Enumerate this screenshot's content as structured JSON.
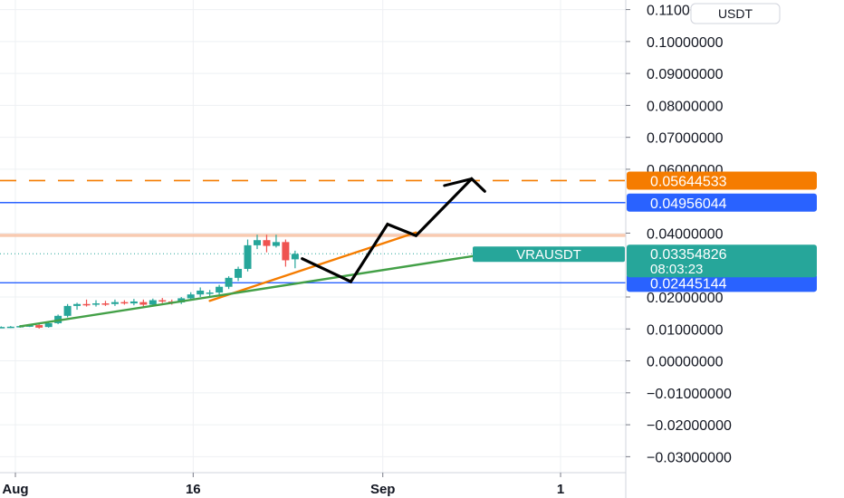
{
  "chart_data": {
    "type": "candlestick",
    "symbol": "VRAUSDT",
    "currency": "USDT",
    "price_axis": {
      "ticks": [
        "0.11000000",
        "0.10000000",
        "0.09000000",
        "0.08000000",
        "0.07000000",
        "0.06000000",
        "0.04000000",
        "0.02000000",
        "0.01000000",
        "0.00000000",
        "−0.01000000",
        "−0.02000000",
        "−0.03000000"
      ],
      "tick_values": [
        0.11,
        0.1,
        0.09,
        0.08,
        0.07,
        0.06,
        0.04,
        0.02,
        0.01,
        0.0,
        -0.01,
        -0.02,
        -0.03
      ],
      "ylim": [
        -0.035,
        0.113
      ]
    },
    "time_axis": {
      "ticks": [
        "Aug",
        "16",
        "Sep",
        "1"
      ],
      "tick_days": [
        1,
        16,
        32,
        47
      ],
      "xlim": [
        -0.3,
        52.5
      ]
    },
    "candles": [
      {
        "day": -0.2,
        "o": 0.0105,
        "h": 0.0108,
        "l": 0.0103,
        "c": 0.0106
      },
      {
        "day": 0.6,
        "o": 0.0106,
        "h": 0.0109,
        "l": 0.0103,
        "c": 0.0107
      },
      {
        "day": 1.4,
        "o": 0.0107,
        "h": 0.0112,
        "l": 0.0104,
        "c": 0.0109
      },
      {
        "day": 2.2,
        "o": 0.0109,
        "h": 0.0115,
        "l": 0.0106,
        "c": 0.0111
      },
      {
        "day": 3.0,
        "o": 0.0112,
        "h": 0.0115,
        "l": 0.0101,
        "c": 0.0104
      },
      {
        "day": 3.8,
        "o": 0.0106,
        "h": 0.0122,
        "l": 0.0104,
        "c": 0.0118
      },
      {
        "day": 4.6,
        "o": 0.0118,
        "h": 0.0145,
        "l": 0.0115,
        "c": 0.0141
      },
      {
        "day": 5.4,
        "o": 0.0141,
        "h": 0.0178,
        "l": 0.0136,
        "c": 0.0172
      },
      {
        "day": 6.2,
        "o": 0.0172,
        "h": 0.0182,
        "l": 0.016,
        "c": 0.0178
      },
      {
        "day": 7.0,
        "o": 0.0178,
        "h": 0.0192,
        "l": 0.017,
        "c": 0.0176
      },
      {
        "day": 7.8,
        "o": 0.0176,
        "h": 0.019,
        "l": 0.017,
        "c": 0.018
      },
      {
        "day": 8.6,
        "o": 0.018,
        "h": 0.0188,
        "l": 0.0172,
        "c": 0.0178
      },
      {
        "day": 9.4,
        "o": 0.0178,
        "h": 0.0192,
        "l": 0.0172,
        "c": 0.0184
      },
      {
        "day": 10.2,
        "o": 0.0184,
        "h": 0.019,
        "l": 0.0176,
        "c": 0.018
      },
      {
        "day": 11.0,
        "o": 0.018,
        "h": 0.0194,
        "l": 0.0174,
        "c": 0.0186
      },
      {
        "day": 11.8,
        "o": 0.0184,
        "h": 0.0192,
        "l": 0.017,
        "c": 0.0176
      },
      {
        "day": 12.6,
        "o": 0.0176,
        "h": 0.0195,
        "l": 0.0172,
        "c": 0.019
      },
      {
        "day": 13.4,
        "o": 0.019,
        "h": 0.0197,
        "l": 0.0181,
        "c": 0.0186
      },
      {
        "day": 14.2,
        "o": 0.0186,
        "h": 0.0192,
        "l": 0.0176,
        "c": 0.0182
      },
      {
        "day": 15.0,
        "o": 0.0183,
        "h": 0.02,
        "l": 0.0178,
        "c": 0.0196
      },
      {
        "day": 15.8,
        "o": 0.0196,
        "h": 0.0215,
        "l": 0.019,
        "c": 0.0208
      },
      {
        "day": 16.6,
        "o": 0.0208,
        "h": 0.023,
        "l": 0.02,
        "c": 0.022
      },
      {
        "day": 17.4,
        "o": 0.021,
        "h": 0.0222,
        "l": 0.02,
        "c": 0.0214
      },
      {
        "day": 18.2,
        "o": 0.0214,
        "h": 0.0238,
        "l": 0.0208,
        "c": 0.0232
      },
      {
        "day": 19.0,
        "o": 0.0232,
        "h": 0.0265,
        "l": 0.0225,
        "c": 0.026
      },
      {
        "day": 19.8,
        "o": 0.026,
        "h": 0.0295,
        "l": 0.025,
        "c": 0.0288
      },
      {
        "day": 20.6,
        "o": 0.0288,
        "h": 0.038,
        "l": 0.028,
        "c": 0.0362
      },
      {
        "day": 21.4,
        "o": 0.0362,
        "h": 0.0395,
        "l": 0.035,
        "c": 0.0378
      },
      {
        "day": 22.2,
        "o": 0.0378,
        "h": 0.0395,
        "l": 0.034,
        "c": 0.036
      },
      {
        "day": 23.0,
        "o": 0.036,
        "h": 0.0395,
        "l": 0.0355,
        "c": 0.0372
      },
      {
        "day": 23.8,
        "o": 0.0372,
        "h": 0.038,
        "l": 0.0295,
        "c": 0.0315
      },
      {
        "day": 24.6,
        "o": 0.0318,
        "h": 0.0345,
        "l": 0.029,
        "c": 0.0335
      }
    ],
    "last_price": {
      "value": 0.03354826,
      "label": "0.03354826",
      "countdown": "08:03:23",
      "symbol_label": "VRAUSDT"
    },
    "levels": [
      {
        "name": "target-dashed",
        "value": 0.05644533,
        "label": "0.05644533",
        "color": "#f57c00",
        "style": "dashed"
      },
      {
        "name": "resistance",
        "value": 0.04956044,
        "label": "0.04956044",
        "color": "#2962ff",
        "style": "solid"
      },
      {
        "name": "support",
        "value": 0.02445144,
        "label": "0.02445144",
        "color": "#2962ff",
        "style": "solid"
      }
    ],
    "zone": {
      "from": 0.0388,
      "to": 0.0398,
      "color": "#f7c1a3"
    },
    "trendlines": [
      {
        "name": "orange-trendline",
        "color": "#f57c00",
        "points": [
          [
            17.4,
            0.0188
          ],
          [
            34.8,
            0.0402
          ]
        ]
      },
      {
        "name": "green-trendline",
        "color": "#43a047",
        "points": [
          [
            1.4,
            0.0108
          ],
          [
            40.8,
            0.0335
          ]
        ]
      }
    ],
    "projection": {
      "name": "projected-path",
      "color": "#000000",
      "points": [
        [
          25.2,
          0.032
        ],
        [
          29.3,
          0.0248
        ],
        [
          32.4,
          0.0428
        ],
        [
          34.8,
          0.0392
        ],
        [
          39.5,
          0.057
        ],
        [
          40.6,
          0.0531
        ]
      ],
      "arrow_tail": [
        37.2,
        0.0549
      ]
    },
    "colors": {
      "up": "#26a69a",
      "down": "#ef5350",
      "grid": "#eef0f3",
      "text": "#131722"
    }
  }
}
